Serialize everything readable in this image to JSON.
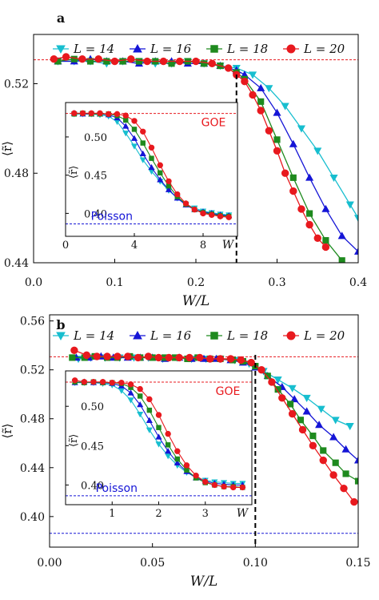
{
  "panels": [
    {
      "label": "a",
      "xlabel": "W/L",
      "ylabel": "⟨r̃⟩",
      "xlim": [
        0,
        0.4
      ],
      "ylim": [
        0.44,
        0.542
      ],
      "xticks": [
        "0.0",
        "0.1",
        "0.2",
        "0.3",
        "0.4"
      ],
      "xtick_values": [
        0,
        0.1,
        0.2,
        0.3,
        0.4
      ],
      "yticks": [
        "0.44",
        "0.48",
        "0.52"
      ],
      "ytick_values": [
        0.44,
        0.48,
        0.52
      ],
      "goe_level": 0.5307,
      "critical_x": 0.25,
      "inset": {
        "xlim": [
          0,
          10
        ],
        "ylim": [
          0.37,
          0.545
        ],
        "xticks": [
          "0",
          "4",
          "8"
        ],
        "xtick_values": [
          0,
          4,
          8
        ],
        "yticks": [
          "0.40",
          "0.45",
          "0.50"
        ],
        "ytick_values": [
          0.4,
          0.45,
          0.5
        ],
        "xlabel": "W",
        "ylabel": "⟨r̃⟩",
        "goe_label": "GOE",
        "poisson_label": "Poisson",
        "goe_level": 0.5307,
        "poisson_level": 0.3863
      }
    },
    {
      "label": "b",
      "xlabel": "W/L",
      "ylabel": "⟨r̃⟩",
      "xlim": [
        0,
        0.15
      ],
      "ylim": [
        0.375,
        0.565
      ],
      "xticks": [
        "0.00",
        "0.05",
        "0.10",
        "0.15"
      ],
      "xtick_values": [
        0,
        0.05,
        0.1,
        0.15
      ],
      "yticks": [
        "0.40",
        "0.44",
        "0.48",
        "0.52",
        "0.56"
      ],
      "ytick_values": [
        0.4,
        0.44,
        0.48,
        0.52,
        0.56
      ],
      "goe_level": 0.5307,
      "poisson_level": 0.3863,
      "critical_x": 0.1,
      "inset": {
        "xlim": [
          0,
          4
        ],
        "ylim": [
          0.375,
          0.545
        ],
        "xticks": [
          "1",
          "2",
          "3"
        ],
        "xtick_values": [
          1,
          2,
          3
        ],
        "yticks": [
          "0.40",
          "0.45",
          "0.50"
        ],
        "ytick_values": [
          0.4,
          0.45,
          0.5
        ],
        "xlabel": "W",
        "ylabel": "⟨r̃⟩",
        "goe_label": "GOE",
        "poisson_label": "Poisson",
        "goe_level": 0.5307,
        "poisson_level": 0.3863
      }
    }
  ],
  "legend": [
    {
      "name": "L = 14",
      "marker": "triangle-down",
      "color": "#17becf"
    },
    {
      "name": "L = 16",
      "marker": "triangle-up",
      "color": "#1515d6"
    },
    {
      "name": "L = 18",
      "marker": "square",
      "color": "#1e8a1e"
    },
    {
      "name": "L = 20",
      "marker": "circle",
      "color": "#e8191e"
    }
  ],
  "colors": {
    "goe_line": "#e8191e",
    "poisson_line": "#1515d6",
    "critical_line": "#000000",
    "goe_text": "#e8191e",
    "poisson_text": "#1515d6"
  },
  "chart_data": [
    {
      "type": "line",
      "panel": "a",
      "xlabel": "W/L",
      "ylabel": "⟨r̃⟩",
      "xlim": [
        0,
        0.4
      ],
      "ylim": [
        0.44,
        0.542
      ],
      "series": [
        {
          "name": "L = 14",
          "x": [
            0.03,
            0.05,
            0.07,
            0.09,
            0.11,
            0.13,
            0.15,
            0.17,
            0.19,
            0.21,
            0.23,
            0.25,
            0.27,
            0.29,
            0.31,
            0.33,
            0.35,
            0.37,
            0.39,
            0.4
          ],
          "y": [
            0.53,
            0.53,
            0.53,
            0.529,
            0.53,
            0.53,
            0.529,
            0.529,
            0.53,
            0.529,
            0.528,
            0.527,
            0.524,
            0.518,
            0.51,
            0.5,
            0.49,
            0.478,
            0.466,
            0.46
          ]
        },
        {
          "name": "L = 16",
          "x": [
            0.03,
            0.05,
            0.07,
            0.09,
            0.11,
            0.13,
            0.15,
            0.17,
            0.19,
            0.21,
            0.23,
            0.25,
            0.26,
            0.28,
            0.3,
            0.32,
            0.34,
            0.36,
            0.38,
            0.4
          ],
          "y": [
            0.53,
            0.53,
            0.531,
            0.53,
            0.53,
            0.529,
            0.53,
            0.53,
            0.529,
            0.529,
            0.528,
            0.526,
            0.524,
            0.518,
            0.507,
            0.493,
            0.478,
            0.464,
            0.452,
            0.445
          ]
        },
        {
          "name": "L = 18",
          "x": [
            0.03,
            0.05,
            0.07,
            0.09,
            0.11,
            0.13,
            0.15,
            0.17,
            0.19,
            0.21,
            0.23,
            0.25,
            0.26,
            0.28,
            0.3,
            0.32,
            0.34,
            0.36,
            0.38
          ],
          "y": [
            0.53,
            0.531,
            0.53,
            0.53,
            0.53,
            0.53,
            0.53,
            0.529,
            0.53,
            0.529,
            0.528,
            0.525,
            0.522,
            0.512,
            0.495,
            0.478,
            0.462,
            0.45,
            0.441
          ]
        },
        {
          "name": "L = 20",
          "x": [
            0.025,
            0.04,
            0.06,
            0.08,
            0.1,
            0.12,
            0.14,
            0.16,
            0.18,
            0.2,
            0.22,
            0.24,
            0.25,
            0.26,
            0.27,
            0.28,
            0.29,
            0.3,
            0.31,
            0.32,
            0.33,
            0.34,
            0.35,
            0.36
          ],
          "y": [
            0.531,
            0.532,
            0.531,
            0.531,
            0.53,
            0.531,
            0.53,
            0.53,
            0.53,
            0.53,
            0.529,
            0.527,
            0.524,
            0.521,
            0.515,
            0.508,
            0.499,
            0.49,
            0.48,
            0.472,
            0.464,
            0.457,
            0.451,
            0.447
          ]
        }
      ]
    },
    {
      "type": "line",
      "panel": "a-inset",
      "xlabel": "W",
      "ylabel": "⟨r̃⟩",
      "xlim": [
        0,
        10
      ],
      "ylim": [
        0.37,
        0.545
      ],
      "series": [
        {
          "name": "L = 14",
          "x": [
            0.5,
            1,
            1.5,
            2,
            2.5,
            3,
            3.5,
            4,
            4.5,
            5,
            5.5,
            6,
            6.5,
            7,
            7.5,
            8,
            8.5,
            9,
            9.5
          ],
          "y": [
            0.53,
            0.53,
            0.53,
            0.529,
            0.527,
            0.52,
            0.505,
            0.488,
            0.47,
            0.455,
            0.442,
            0.43,
            0.42,
            0.412,
            0.407,
            0.403,
            0.401,
            0.399,
            0.398
          ]
        },
        {
          "name": "L = 16",
          "x": [
            0.5,
            1,
            1.5,
            2,
            2.5,
            3,
            3.5,
            4,
            4.5,
            5,
            5.5,
            6,
            6.5,
            7,
            7.5,
            8,
            8.5,
            9,
            9.5
          ],
          "y": [
            0.531,
            0.53,
            0.53,
            0.53,
            0.529,
            0.525,
            0.514,
            0.498,
            0.478,
            0.46,
            0.444,
            0.431,
            0.42,
            0.411,
            0.405,
            0.402,
            0.4,
            0.398,
            0.397
          ]
        },
        {
          "name": "L = 18",
          "x": [
            0.5,
            1,
            1.5,
            2,
            2.5,
            3,
            3.5,
            4,
            4.5,
            5,
            5.5,
            6,
            6.5,
            7,
            7.5,
            8,
            8.5,
            9,
            9.5
          ],
          "y": [
            0.53,
            0.531,
            0.53,
            0.53,
            0.53,
            0.528,
            0.522,
            0.51,
            0.492,
            0.472,
            0.453,
            0.436,
            0.422,
            0.412,
            0.405,
            0.401,
            0.399,
            0.397,
            0.396
          ]
        },
        {
          "name": "L = 20",
          "x": [
            0.5,
            1,
            1.5,
            2,
            2.5,
            3,
            3.5,
            4,
            4.5,
            5,
            5.5,
            6,
            6.5,
            7,
            7.5,
            8,
            8.5,
            9,
            9.5
          ],
          "y": [
            0.531,
            0.531,
            0.531,
            0.531,
            0.53,
            0.53,
            0.528,
            0.521,
            0.507,
            0.486,
            0.463,
            0.442,
            0.425,
            0.413,
            0.405,
            0.4,
            0.398,
            0.396,
            0.395
          ]
        }
      ]
    },
    {
      "type": "line",
      "panel": "b",
      "xlabel": "W/L",
      "ylabel": "⟨r̃⟩",
      "xlim": [
        0,
        0.15
      ],
      "ylim": [
        0.375,
        0.565
      ],
      "series": [
        {
          "name": "L = 14",
          "x": [
            0.014,
            0.02,
            0.027,
            0.034,
            0.041,
            0.048,
            0.055,
            0.062,
            0.069,
            0.076,
            0.083,
            0.09,
            0.097,
            0.104,
            0.111,
            0.118,
            0.125,
            0.132,
            0.139,
            0.146
          ],
          "y": [
            0.529,
            0.53,
            0.53,
            0.53,
            0.53,
            0.53,
            0.529,
            0.53,
            0.529,
            0.529,
            0.529,
            0.528,
            0.525,
            0.519,
            0.512,
            0.505,
            0.497,
            0.488,
            0.479,
            0.474
          ]
        },
        {
          "name": "L = 16",
          "x": [
            0.013,
            0.019,
            0.025,
            0.031,
            0.038,
            0.044,
            0.05,
            0.056,
            0.063,
            0.069,
            0.075,
            0.081,
            0.088,
            0.094,
            0.1,
            0.106,
            0.113,
            0.119,
            0.125,
            0.131,
            0.138,
            0.144,
            0.15
          ],
          "y": [
            0.53,
            0.53,
            0.531,
            0.53,
            0.53,
            0.53,
            0.53,
            0.529,
            0.53,
            0.529,
            0.529,
            0.529,
            0.528,
            0.526,
            0.522,
            0.515,
            0.506,
            0.496,
            0.486,
            0.475,
            0.465,
            0.455,
            0.446
          ]
        },
        {
          "name": "L = 18",
          "x": [
            0.011,
            0.017,
            0.022,
            0.028,
            0.033,
            0.039,
            0.044,
            0.05,
            0.056,
            0.061,
            0.067,
            0.072,
            0.078,
            0.083,
            0.089,
            0.094,
            0.1,
            0.106,
            0.111,
            0.117,
            0.122,
            0.128,
            0.133,
            0.139,
            0.144,
            0.15
          ],
          "y": [
            0.53,
            0.53,
            0.531,
            0.53,
            0.53,
            0.531,
            0.53,
            0.53,
            0.53,
            0.53,
            0.529,
            0.53,
            0.529,
            0.529,
            0.528,
            0.527,
            0.523,
            0.515,
            0.504,
            0.492,
            0.479,
            0.466,
            0.454,
            0.444,
            0.435,
            0.429
          ]
        },
        {
          "name": "L = 20",
          "x": [
            0.012,
            0.018,
            0.023,
            0.028,
            0.033,
            0.038,
            0.043,
            0.048,
            0.053,
            0.058,
            0.063,
            0.068,
            0.073,
            0.078,
            0.083,
            0.088,
            0.093,
            0.098,
            0.103,
            0.108,
            0.113,
            0.118,
            0.123,
            0.128,
            0.133,
            0.138,
            0.143,
            0.148
          ],
          "y": [
            0.536,
            0.532,
            0.531,
            0.531,
            0.531,
            0.531,
            0.53,
            0.531,
            0.53,
            0.53,
            0.53,
            0.53,
            0.53,
            0.529,
            0.529,
            0.529,
            0.528,
            0.526,
            0.52,
            0.51,
            0.497,
            0.484,
            0.471,
            0.458,
            0.446,
            0.434,
            0.423,
            0.412
          ]
        }
      ]
    },
    {
      "type": "line",
      "panel": "b-inset",
      "xlabel": "W",
      "ylabel": "⟨r̃⟩",
      "xlim": [
        0,
        4
      ],
      "ylim": [
        0.375,
        0.545
      ],
      "series": [
        {
          "name": "L = 14",
          "x": [
            0.2,
            0.4,
            0.6,
            0.8,
            1,
            1.2,
            1.4,
            1.6,
            1.8,
            2,
            2.2,
            2.4,
            2.6,
            2.8,
            3,
            3.2,
            3.4,
            3.6,
            3.8
          ],
          "y": [
            0.53,
            0.53,
            0.53,
            0.529,
            0.527,
            0.52,
            0.508,
            0.49,
            0.47,
            0.452,
            0.437,
            0.425,
            0.416,
            0.41,
            0.406,
            0.404,
            0.403,
            0.402,
            0.402
          ]
        },
        {
          "name": "L = 16",
          "x": [
            0.2,
            0.4,
            0.6,
            0.8,
            1,
            1.2,
            1.4,
            1.6,
            1.8,
            2,
            2.2,
            2.4,
            2.6,
            2.8,
            3,
            3.2,
            3.4,
            3.6,
            3.8
          ],
          "y": [
            0.53,
            0.531,
            0.53,
            0.53,
            0.529,
            0.526,
            0.517,
            0.502,
            0.482,
            0.461,
            0.443,
            0.428,
            0.417,
            0.409,
            0.405,
            0.402,
            0.401,
            0.4,
            0.4
          ]
        },
        {
          "name": "L = 18",
          "x": [
            0.2,
            0.4,
            0.6,
            0.8,
            1,
            1.2,
            1.4,
            1.6,
            1.8,
            2,
            2.2,
            2.4,
            2.6,
            2.8,
            3,
            3.2,
            3.4,
            3.6,
            3.8
          ],
          "y": [
            0.531,
            0.53,
            0.531,
            0.53,
            0.53,
            0.529,
            0.524,
            0.513,
            0.495,
            0.473,
            0.451,
            0.433,
            0.419,
            0.409,
            0.403,
            0.4,
            0.398,
            0.398,
            0.397
          ]
        },
        {
          "name": "L = 20",
          "x": [
            0.2,
            0.4,
            0.6,
            0.8,
            1,
            1.2,
            1.4,
            1.6,
            1.8,
            2,
            2.2,
            2.4,
            2.6,
            2.8,
            3,
            3.2,
            3.4,
            3.6,
            3.8
          ],
          "y": [
            0.533,
            0.531,
            0.531,
            0.531,
            0.53,
            0.53,
            0.528,
            0.522,
            0.509,
            0.489,
            0.465,
            0.443,
            0.425,
            0.412,
            0.404,
            0.4,
            0.398,
            0.397,
            0.397
          ]
        }
      ]
    }
  ]
}
